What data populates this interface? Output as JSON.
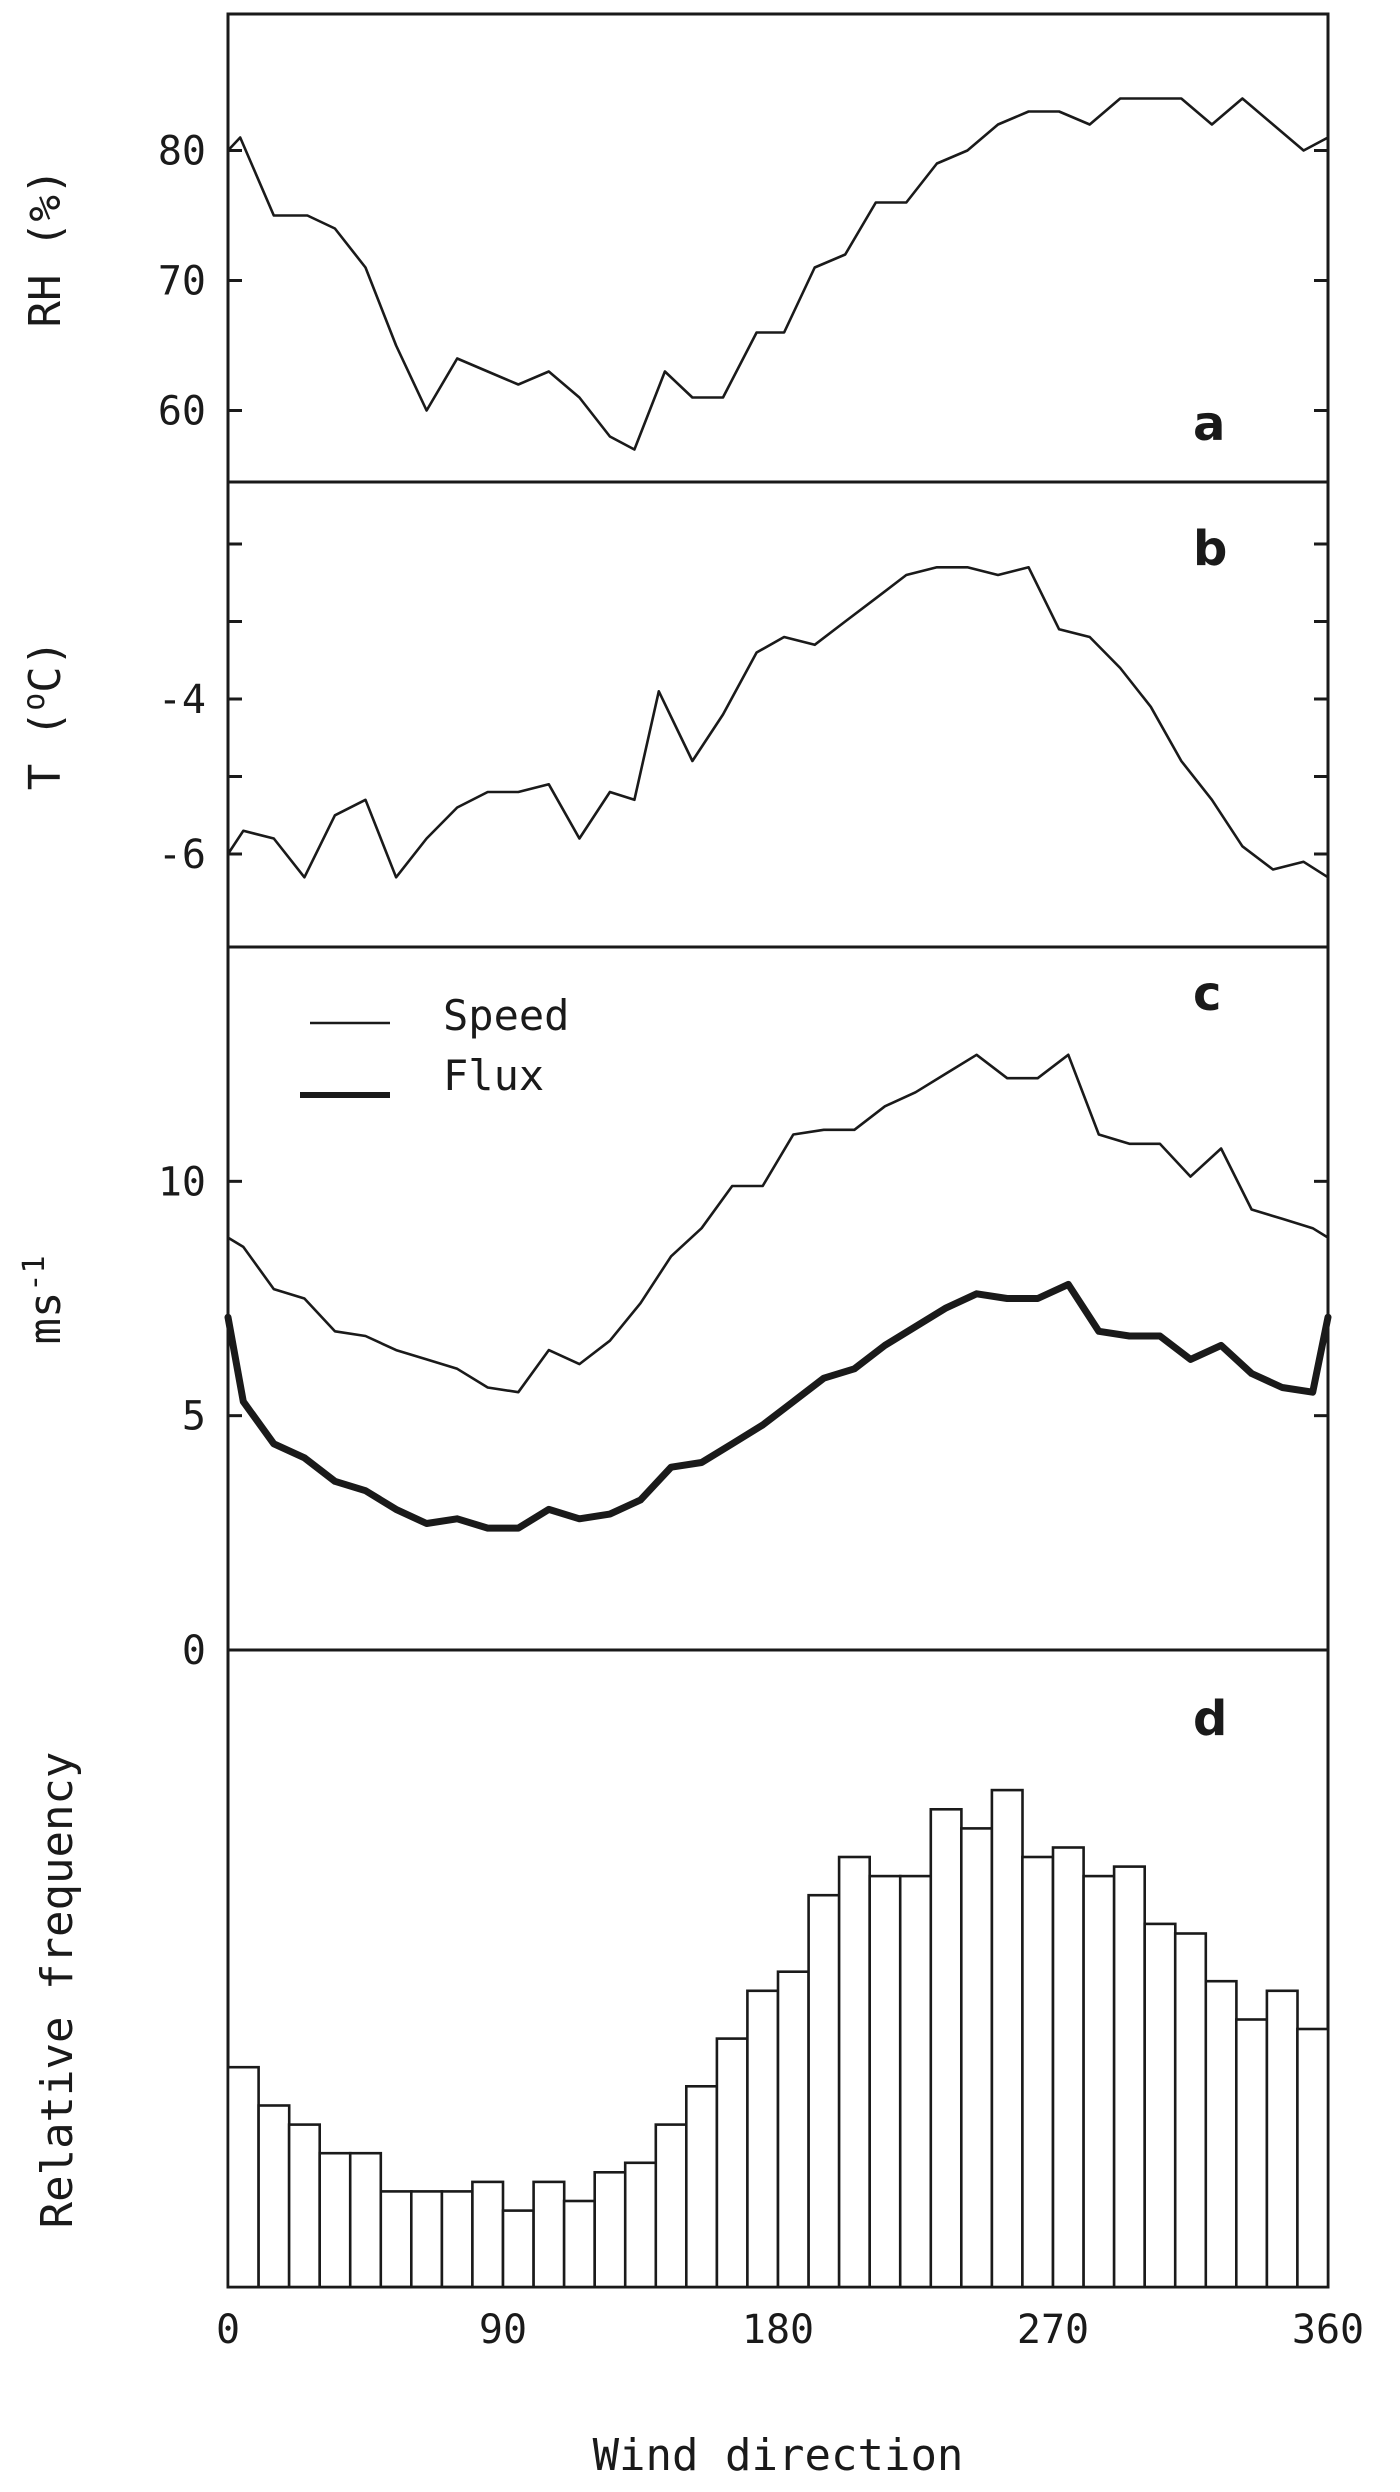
{
  "chart_data": [
    {
      "panel": "a",
      "type": "line",
      "ylabel": "RH (%)",
      "ylim": [
        54.5,
        90.5
      ],
      "yticks": [
        60,
        70,
        80
      ],
      "xlim": [
        0,
        360
      ],
      "series": [
        {
          "line_weight": "thin",
          "x": [
            0,
            4,
            15,
            26,
            35,
            45,
            55,
            65,
            75,
            85,
            95,
            105,
            115,
            125,
            133,
            143,
            152,
            162,
            173,
            182,
            192,
            202,
            212,
            222,
            232,
            242,
            252,
            262,
            272,
            282,
            292,
            302,
            312,
            322,
            332,
            342,
            352,
            360
          ],
          "y": [
            80,
            81,
            75,
            75,
            74,
            71,
            65,
            60,
            64,
            63,
            62,
            63,
            61,
            58,
            57,
            63,
            61,
            61,
            66,
            66,
            71,
            72,
            76,
            76,
            79,
            80,
            82,
            83,
            83,
            82,
            84,
            84,
            84,
            82,
            84,
            82,
            80,
            81
          ]
        }
      ]
    },
    {
      "panel": "b",
      "type": "line",
      "ylabel": "T (°C)",
      "ylim": [
        -7.2,
        -1.2
      ],
      "yticks": [
        -6,
        -4
      ],
      "yticks_unlabeled": [
        -5,
        -3,
        -2
      ],
      "xlim": [
        0,
        360
      ],
      "series": [
        {
          "line_weight": "thin",
          "x": [
            0,
            5,
            15,
            25,
            35,
            45,
            55,
            65,
            75,
            85,
            95,
            105,
            115,
            125,
            133,
            141,
            152,
            162,
            173,
            182,
            192,
            202,
            212,
            222,
            232,
            242,
            252,
            262,
            272,
            282,
            292,
            302,
            312,
            322,
            332,
            342,
            352,
            360
          ],
          "y": [
            -6.0,
            -5.7,
            -5.8,
            -6.3,
            -5.5,
            -5.3,
            -6.3,
            -5.8,
            -5.4,
            -5.2,
            -5.2,
            -5.1,
            -5.8,
            -5.2,
            -5.3,
            -3.9,
            -4.8,
            -4.2,
            -3.4,
            -3.2,
            -3.3,
            -3.0,
            -2.7,
            -2.4,
            -2.3,
            -2.3,
            -2.4,
            -2.3,
            -3.1,
            -3.2,
            -3.6,
            -4.1,
            -4.8,
            -5.3,
            -5.9,
            -6.2,
            -6.1,
            -6.3
          ]
        }
      ]
    },
    {
      "panel": "c",
      "type": "line",
      "ylabel": "ms-1",
      "ylim": [
        0,
        15
      ],
      "yticks": [
        0,
        5,
        10
      ],
      "xlim": [
        0,
        360
      ],
      "legend_position": "top-left",
      "series": [
        {
          "name": "Speed",
          "line_weight": "thin",
          "x": [
            0,
            5,
            15,
            25,
            35,
            45,
            55,
            65,
            75,
            85,
            95,
            105,
            115,
            125,
            135,
            145,
            155,
            165,
            175,
            185,
            195,
            205,
            215,
            225,
            235,
            245,
            255,
            265,
            275,
            285,
            295,
            305,
            315,
            325,
            335,
            345,
            355,
            360
          ],
          "y": [
            8.8,
            8.6,
            7.7,
            7.5,
            6.8,
            6.7,
            6.4,
            6.2,
            6.0,
            5.6,
            5.5,
            6.4,
            6.1,
            6.6,
            7.4,
            8.4,
            9.0,
            9.9,
            9.9,
            11.0,
            11.1,
            11.1,
            11.6,
            11.9,
            12.3,
            12.7,
            12.2,
            12.2,
            12.7,
            11.0,
            10.8,
            10.8,
            10.1,
            10.7,
            9.4,
            9.2,
            9.0,
            8.8
          ]
        },
        {
          "name": "Flux",
          "line_weight": "thick",
          "x": [
            0,
            5,
            15,
            25,
            35,
            45,
            55,
            65,
            75,
            85,
            95,
            105,
            115,
            125,
            135,
            145,
            155,
            165,
            175,
            185,
            195,
            205,
            215,
            225,
            235,
            245,
            255,
            265,
            275,
            285,
            295,
            305,
            315,
            325,
            335,
            345,
            355,
            360
          ],
          "y": [
            7.1,
            5.3,
            4.4,
            4.1,
            3.6,
            3.4,
            3.0,
            2.7,
            2.8,
            2.6,
            2.6,
            3.0,
            2.8,
            2.9,
            3.2,
            3.9,
            4.0,
            4.4,
            4.8,
            5.3,
            5.8,
            6.0,
            6.5,
            6.9,
            7.3,
            7.6,
            7.5,
            7.5,
            7.8,
            6.8,
            6.7,
            6.7,
            6.2,
            6.5,
            5.9,
            5.6,
            5.5,
            7.1
          ]
        }
      ]
    },
    {
      "panel": "d",
      "type": "bar",
      "ylabel": "Relative frequency",
      "xlabel": "Wind direction",
      "xlim": [
        0,
        360
      ],
      "xticks": [
        0,
        90,
        180,
        270,
        360
      ],
      "bin_width": 10,
      "bin_starts": [
        0,
        10,
        20,
        30,
        40,
        50,
        60,
        70,
        80,
        90,
        100,
        110,
        120,
        130,
        140,
        150,
        160,
        170,
        180,
        190,
        200,
        210,
        220,
        230,
        240,
        250,
        260,
        270,
        280,
        290,
        300,
        310,
        320,
        330,
        340,
        350
      ],
      "values": [
        0.345,
        0.285,
        0.255,
        0.21,
        0.21,
        0.15,
        0.15,
        0.15,
        0.165,
        0.12,
        0.165,
        0.135,
        0.18,
        0.195,
        0.255,
        0.315,
        0.39,
        0.465,
        0.495,
        0.615,
        0.675,
        0.645,
        0.645,
        0.75,
        0.72,
        0.78,
        0.675,
        0.69,
        0.645,
        0.66,
        0.57,
        0.555,
        0.48,
        0.42,
        0.465,
        0.405
      ]
    }
  ],
  "panels": {
    "a": {
      "letter": "a",
      "tick_labels": [
        "60",
        "70",
        "80"
      ],
      "ylabel": "RH (%)"
    },
    "b": {
      "letter": "b",
      "tick_labels": [
        "-6",
        "-4"
      ],
      "ylabel_base": "T (",
      "ylabel_sup": "o",
      "ylabel_end": "C)"
    },
    "c": {
      "letter": "c",
      "tick_labels": [
        "0",
        "5",
        "10"
      ],
      "ylabel_base": "ms",
      "ylabel_sup": "-1"
    },
    "d": {
      "letter": "d",
      "ylabel": "Relative frequency"
    }
  },
  "legend": {
    "speed": "Speed",
    "flux": "Flux"
  },
  "xaxis": {
    "label": "Wind direction",
    "tick_labels": [
      "0",
      "90",
      "180",
      "270",
      "360"
    ]
  }
}
